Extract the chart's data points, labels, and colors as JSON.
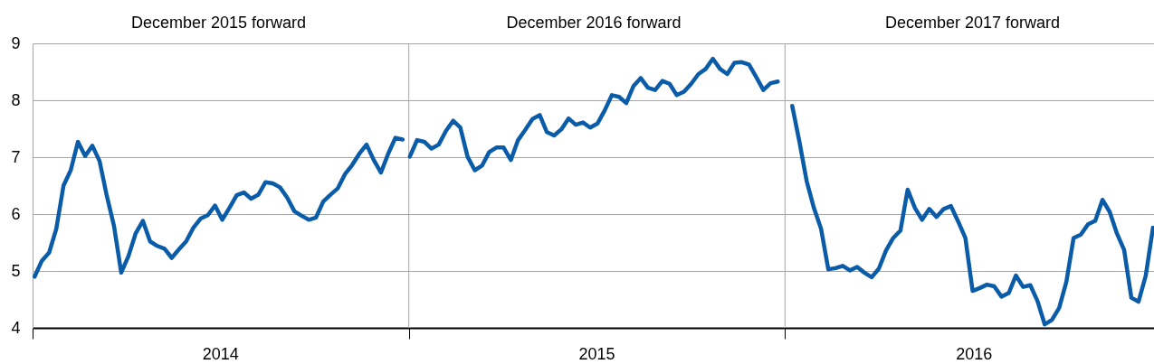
{
  "chart_data": {
    "type": "line",
    "series": [
      {
        "color": "#0a5ca8",
        "x": [
          "2014-01-03",
          "2014-01-10",
          "2014-01-17",
          "2014-01-24",
          "2014-01-31",
          "2014-02-07",
          "2014-02-14",
          "2014-02-21",
          "2014-02-28",
          "2014-03-07",
          "2014-03-14",
          "2014-03-21",
          "2014-03-28",
          "2014-04-04",
          "2014-04-11",
          "2014-04-18",
          "2014-04-25",
          "2014-05-02",
          "2014-05-09",
          "2014-05-16",
          "2014-05-23",
          "2014-05-30",
          "2014-06-06",
          "2014-06-13",
          "2014-06-20",
          "2014-06-27",
          "2014-07-04",
          "2014-07-11",
          "2014-07-18",
          "2014-07-25",
          "2014-08-01",
          "2014-08-08",
          "2014-08-15",
          "2014-08-22",
          "2014-08-29",
          "2014-09-05",
          "2014-09-12",
          "2014-09-19",
          "2014-09-26",
          "2014-10-03",
          "2014-10-10",
          "2014-10-17",
          "2014-10-24",
          "2014-10-31",
          "2014-11-07",
          "2014-11-14",
          "2014-11-21",
          "2014-11-28",
          "2014-12-05",
          "2014-12-12",
          "2014-12-19",
          "2014-12-26"
        ],
        "values": [
          4.9,
          5.18,
          5.32,
          5.74,
          6.5,
          6.77,
          7.27,
          7.02,
          7.2,
          6.93,
          6.32,
          5.79,
          4.97,
          5.26,
          5.66,
          5.88,
          5.52,
          5.44,
          5.39,
          5.23,
          5.38,
          5.52,
          5.76,
          5.92,
          5.98,
          6.15,
          5.9,
          6.11,
          6.33,
          6.38,
          6.27,
          6.34,
          6.56,
          6.54,
          6.47,
          6.29,
          6.05,
          5.97,
          5.9,
          5.94,
          6.22,
          6.34,
          6.45,
          6.7,
          6.86,
          7.06,
          7.22,
          6.95,
          6.73,
          7.06,
          7.34,
          7.31
        ]
      },
      {
        "color": "#0a5ca8",
        "x": [
          "2015-01-02",
          "2015-01-09",
          "2015-01-16",
          "2015-01-23",
          "2015-01-30",
          "2015-02-06",
          "2015-02-13",
          "2015-02-20",
          "2015-02-27",
          "2015-03-06",
          "2015-03-13",
          "2015-03-20",
          "2015-03-27",
          "2015-04-03",
          "2015-04-10",
          "2015-04-17",
          "2015-04-24",
          "2015-05-01",
          "2015-05-08",
          "2015-05-15",
          "2015-05-22",
          "2015-05-29",
          "2015-06-05",
          "2015-06-12",
          "2015-06-19",
          "2015-06-26",
          "2015-07-03",
          "2015-07-10",
          "2015-07-17",
          "2015-07-24",
          "2015-07-31",
          "2015-08-07",
          "2015-08-14",
          "2015-08-21",
          "2015-08-28",
          "2015-09-04",
          "2015-09-11",
          "2015-09-18",
          "2015-09-25",
          "2015-10-02",
          "2015-10-09",
          "2015-10-16",
          "2015-10-23",
          "2015-10-30",
          "2015-11-06",
          "2015-11-13",
          "2015-11-20",
          "2015-11-27",
          "2015-12-04",
          "2015-12-11",
          "2015-12-18",
          "2015-12-25"
        ],
        "values": [
          7.01,
          7.3,
          7.27,
          7.15,
          7.22,
          7.46,
          7.64,
          7.52,
          7.01,
          6.77,
          6.85,
          7.09,
          7.17,
          7.17,
          6.95,
          7.3,
          7.48,
          7.67,
          7.74,
          7.44,
          7.38,
          7.49,
          7.68,
          7.57,
          7.61,
          7.52,
          7.59,
          7.82,
          8.09,
          8.06,
          7.95,
          8.25,
          8.39,
          8.22,
          8.18,
          8.34,
          8.29,
          8.09,
          8.15,
          8.29,
          8.46,
          8.55,
          8.73,
          8.55,
          8.46,
          8.66,
          8.67,
          8.63,
          8.41,
          8.18,
          8.3,
          8.33
        ]
      },
      {
        "color": "#0a5ca8",
        "x": [
          "2016-01-08",
          "2016-01-15",
          "2016-01-22",
          "2016-01-29",
          "2016-02-05",
          "2016-02-12",
          "2016-02-19",
          "2016-02-26",
          "2016-03-04",
          "2016-03-11",
          "2016-03-18",
          "2016-03-25",
          "2016-04-01",
          "2016-04-08",
          "2016-04-15",
          "2016-04-22",
          "2016-04-29",
          "2016-05-06",
          "2016-05-13",
          "2016-05-20",
          "2016-05-27",
          "2016-06-03",
          "2016-06-10",
          "2016-06-17",
          "2016-06-24",
          "2016-07-01",
          "2016-07-08",
          "2016-07-15",
          "2016-07-22",
          "2016-07-29",
          "2016-08-05",
          "2016-08-12",
          "2016-08-19",
          "2016-08-26",
          "2016-09-02",
          "2016-09-09",
          "2016-09-16",
          "2016-09-23",
          "2016-09-30",
          "2016-10-07",
          "2016-10-14",
          "2016-10-21",
          "2016-10-28",
          "2016-11-04",
          "2016-11-11",
          "2016-11-18",
          "2016-11-25",
          "2016-12-02",
          "2016-12-09",
          "2016-12-16",
          "2016-12-23"
        ],
        "values": [
          7.9,
          7.27,
          6.58,
          6.11,
          5.74,
          5.03,
          5.05,
          5.09,
          5.01,
          5.07,
          4.97,
          4.89,
          5.04,
          5.36,
          5.58,
          5.71,
          6.43,
          6.11,
          5.9,
          6.09,
          5.95,
          6.09,
          6.14,
          5.87,
          5.58,
          4.65,
          4.7,
          4.76,
          4.73,
          4.55,
          4.61,
          4.92,
          4.72,
          4.75,
          4.47,
          4.06,
          4.14,
          4.35,
          4.81,
          5.58,
          5.64,
          5.82,
          5.88,
          6.25,
          6.04,
          5.66,
          5.37,
          4.53,
          4.46,
          4.92,
          5.76
        ]
      }
    ],
    "xlim": [
      "2014-01-01",
      "2016-12-24"
    ],
    "xticks": [
      {
        "value": "2014-01-01",
        "label": null
      },
      {
        "value": "2014-07-02",
        "label": "2014"
      },
      {
        "value": "2015-01-01",
        "label": null
      },
      {
        "value": "2015-07-02",
        "label": "2015"
      },
      {
        "value": "2016-01-01",
        "label": null
      },
      {
        "value": "2016-07-02",
        "label": "2016"
      }
    ],
    "ylim": [
      4,
      9
    ],
    "yticks": [
      4,
      5,
      6,
      7,
      8,
      9
    ],
    "grid": "y",
    "ref_lines": [
      {
        "axis": "x",
        "value": "2015-01-01",
        "color": "#a6a6a6"
      },
      {
        "axis": "x",
        "value": "2016-01-01",
        "color": "#a6a6a6"
      }
    ],
    "annotations": [
      "December 2015 forward",
      "December 2016 forward",
      "December 2017 forward"
    ]
  }
}
